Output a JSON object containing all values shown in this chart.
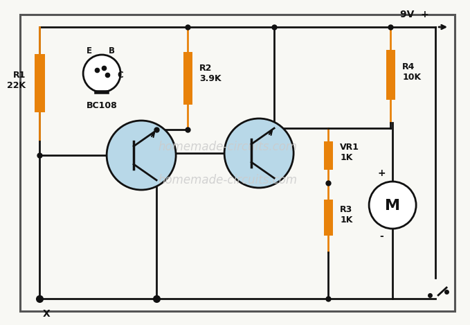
{
  "bg_color": "#f8f8f4",
  "wire_color": "#111111",
  "resistor_color": "#E8820A",
  "transistor_fill": "#B8D8E8",
  "watermark_color": "#CCCCCC",
  "watermark1": "homemade-circuits.com",
  "watermark2": "homemade-circuits.com",
  "label_R1": "R1\n22K",
  "label_R2": "R2\n3.9K",
  "label_R3": "R3\n1K",
  "label_VR1": "VR1\n1K",
  "label_R4": "R4\n10K",
  "label_9V": "9V  +",
  "label_X": "X",
  "label_BC108": "BC108",
  "label_E": "E",
  "label_B": "B",
  "label_C": "C",
  "label_M_plus": "+",
  "label_M_minus": "-",
  "label_M": "M"
}
